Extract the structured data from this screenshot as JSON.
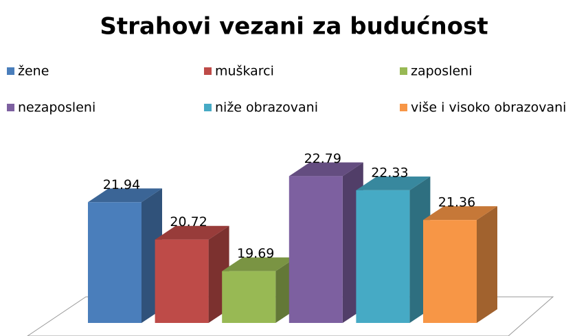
{
  "chart_data": {
    "type": "bar",
    "title": "Strahovi vezani za budućnost",
    "ylim": [
      18,
      23
    ],
    "series": [
      {
        "name": "žene",
        "color": "#4a7ebb",
        "values": [
          21.94
        ]
      },
      {
        "name": "muškarci",
        "color": "#be4b48",
        "values": [
          20.72
        ]
      },
      {
        "name": "zaposleni",
        "color": "#98b954",
        "values": [
          19.69
        ]
      },
      {
        "name": "nezaposleni",
        "color": "#7d60a0",
        "values": [
          22.79
        ]
      },
      {
        "name": "niže obrazovani",
        "color": "#46aac5",
        "values": [
          22.33
        ]
      },
      {
        "name": "više i visoko obrazovani",
        "color": "#f79646",
        "values": [
          21.36
        ]
      }
    ]
  }
}
